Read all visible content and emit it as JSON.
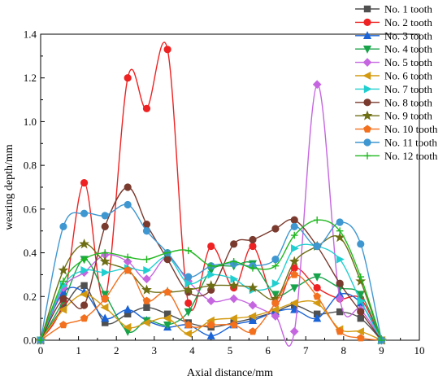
{
  "chart_data": {
    "type": "line",
    "xlabel": "Axial distance/mm",
    "ylabel": "wearing depth/mm",
    "xlim": [
      0,
      10
    ],
    "ylim": [
      0,
      1.4
    ],
    "x_ticks": [
      "0",
      "1",
      "2",
      "3",
      "4",
      "5",
      "6",
      "7",
      "8",
      "9",
      "10"
    ],
    "y_ticks": [
      "0.0",
      "0.2",
      "0.4",
      "0.6",
      "0.8",
      "1.0",
      "1.2",
      "1.4"
    ],
    "grid": false,
    "legend_position": "top-right",
    "series": [
      {
        "name": "No. 1 tooth",
        "color": "#505050",
        "marker": "square",
        "points": [
          [
            0,
            0
          ],
          [
            0.6,
            0.15
          ],
          [
            1.15,
            0.25
          ],
          [
            1.7,
            0.08
          ],
          [
            2.3,
            0.12
          ],
          [
            2.8,
            0.15
          ],
          [
            3.35,
            0.12
          ],
          [
            3.9,
            0.08
          ],
          [
            4.5,
            0.06
          ],
          [
            5.1,
            0.08
          ],
          [
            5.6,
            0.1
          ],
          [
            6.2,
            0.13
          ],
          [
            6.7,
            0.16
          ],
          [
            7.3,
            0.12
          ],
          [
            7.9,
            0.13
          ],
          [
            8.45,
            0.1
          ],
          [
            9.0,
            0
          ]
        ]
      },
      {
        "name": "No. 2 tooth",
        "color": "#ee2222",
        "marker": "circle",
        "points": [
          [
            0,
            0
          ],
          [
            0.6,
            0.18
          ],
          [
            1.15,
            0.72
          ],
          [
            1.7,
            0.19
          ],
          [
            2.3,
            1.2
          ],
          [
            2.8,
            1.06
          ],
          [
            3.35,
            1.33
          ],
          [
            3.9,
            0.17
          ],
          [
            4.5,
            0.43
          ],
          [
            5.1,
            0.24
          ],
          [
            5.6,
            0.43
          ],
          [
            6.2,
            0.17
          ],
          [
            6.7,
            0.33
          ],
          [
            7.3,
            0.24
          ],
          [
            7.9,
            0.19
          ],
          [
            8.45,
            0.19
          ],
          [
            9.0,
            0
          ]
        ]
      },
      {
        "name": "No. 3 tooth",
        "color": "#1a63d6",
        "marker": "triangle-up",
        "points": [
          [
            0,
            0
          ],
          [
            0.6,
            0.22
          ],
          [
            1.15,
            0.22
          ],
          [
            1.7,
            0.1
          ],
          [
            2.3,
            0.14
          ],
          [
            2.8,
            0.09
          ],
          [
            3.35,
            0.06
          ],
          [
            3.9,
            0.07
          ],
          [
            4.5,
            0.02
          ],
          [
            5.1,
            0.07
          ],
          [
            5.6,
            0.09
          ],
          [
            6.2,
            0.13
          ],
          [
            6.7,
            0.14
          ],
          [
            7.3,
            0.1
          ],
          [
            7.9,
            0.21
          ],
          [
            8.45,
            0.17
          ],
          [
            9.0,
            0
          ]
        ]
      },
      {
        "name": "No. 4 tooth",
        "color": "#18a34a",
        "marker": "triangle-down",
        "points": [
          [
            0,
            0
          ],
          [
            0.6,
            0.18
          ],
          [
            1.15,
            0.37
          ],
          [
            1.7,
            0.21
          ],
          [
            2.3,
            0.04
          ],
          [
            2.8,
            0.09
          ],
          [
            3.35,
            0.07
          ],
          [
            3.9,
            0.13
          ],
          [
            4.5,
            0.32
          ],
          [
            5.1,
            0.34
          ],
          [
            5.6,
            0.35
          ],
          [
            6.2,
            0.21
          ],
          [
            6.7,
            0.24
          ],
          [
            7.3,
            0.29
          ],
          [
            7.9,
            0.24
          ],
          [
            8.45,
            0.21
          ],
          [
            9.0,
            0
          ]
        ]
      },
      {
        "name": "No. 5 tooth",
        "color": "#c566e0",
        "marker": "diamond",
        "points": [
          [
            0,
            0
          ],
          [
            0.6,
            0.24
          ],
          [
            1.15,
            0.31
          ],
          [
            1.7,
            0.39
          ],
          [
            2.3,
            0.36
          ],
          [
            2.8,
            0.28
          ],
          [
            3.35,
            0.38
          ],
          [
            3.9,
            0.27
          ],
          [
            4.5,
            0.18
          ],
          [
            5.1,
            0.19
          ],
          [
            5.6,
            0.16
          ],
          [
            6.2,
            0.11
          ],
          [
            6.7,
            0.04
          ],
          [
            7.3,
            1.17
          ],
          [
            7.9,
            0.19
          ],
          [
            8.45,
            0.14
          ],
          [
            9.0,
            0
          ]
        ]
      },
      {
        "name": "No. 6 tooth",
        "color": "#d39a11",
        "marker": "triangle-left",
        "points": [
          [
            0,
            0
          ],
          [
            0.6,
            0.14
          ],
          [
            1.15,
            0.21
          ],
          [
            1.7,
            0.15
          ],
          [
            2.3,
            0.06
          ],
          [
            2.8,
            0.08
          ],
          [
            3.35,
            0.1
          ],
          [
            3.9,
            0.03
          ],
          [
            4.5,
            0.09
          ],
          [
            5.1,
            0.1
          ],
          [
            5.6,
            0.11
          ],
          [
            6.2,
            0.14
          ],
          [
            6.7,
            0.17
          ],
          [
            7.3,
            0.17
          ],
          [
            7.9,
            0.05
          ],
          [
            8.45,
            0.04
          ],
          [
            9.0,
            0
          ]
        ]
      },
      {
        "name": "No. 7 tooth",
        "color": "#22cfd0",
        "marker": "triangle-right",
        "points": [
          [
            0,
            0
          ],
          [
            0.6,
            0.25
          ],
          [
            1.15,
            0.32
          ],
          [
            1.7,
            0.31
          ],
          [
            2.3,
            0.33
          ],
          [
            2.8,
            0.32
          ],
          [
            3.35,
            0.38
          ],
          [
            3.9,
            0.26
          ],
          [
            4.5,
            0.3
          ],
          [
            5.1,
            0.28
          ],
          [
            5.6,
            0.23
          ],
          [
            6.2,
            0.26
          ],
          [
            6.7,
            0.42
          ],
          [
            7.3,
            0.43
          ],
          [
            7.9,
            0.37
          ],
          [
            8.45,
            0.18
          ],
          [
            9.0,
            0
          ]
        ]
      },
      {
        "name": "No. 8 tooth",
        "color": "#7a3a2e",
        "marker": "circle",
        "points": [
          [
            0,
            0
          ],
          [
            0.6,
            0.19
          ],
          [
            1.15,
            0.16
          ],
          [
            1.7,
            0.52
          ],
          [
            2.3,
            0.7
          ],
          [
            2.8,
            0.53
          ],
          [
            3.35,
            0.37
          ],
          [
            3.9,
            0.22
          ],
          [
            4.5,
            0.23
          ],
          [
            5.1,
            0.44
          ],
          [
            5.6,
            0.46
          ],
          [
            6.2,
            0.51
          ],
          [
            6.7,
            0.55
          ],
          [
            7.3,
            0.43
          ],
          [
            7.9,
            0.26
          ],
          [
            8.45,
            0.13
          ],
          [
            9.0,
            0
          ]
        ]
      },
      {
        "name": "No. 9 tooth",
        "color": "#6e6e14",
        "marker": "star",
        "points": [
          [
            0,
            0
          ],
          [
            0.6,
            0.32
          ],
          [
            1.15,
            0.44
          ],
          [
            1.7,
            0.36
          ],
          [
            2.3,
            0.32
          ],
          [
            2.8,
            0.23
          ],
          [
            3.35,
            0.22
          ],
          [
            3.9,
            0.23
          ],
          [
            4.5,
            0.25
          ],
          [
            5.1,
            0.25
          ],
          [
            5.6,
            0.24
          ],
          [
            6.2,
            0.19
          ],
          [
            6.7,
            0.36
          ],
          [
            7.3,
            0.43
          ],
          [
            7.9,
            0.47
          ],
          [
            8.45,
            0.27
          ],
          [
            9.0,
            0
          ]
        ]
      },
      {
        "name": "No. 10 tooth",
        "color": "#f2701e",
        "marker": "pentagon",
        "points": [
          [
            0,
            0
          ],
          [
            0.6,
            0.07
          ],
          [
            1.15,
            0.1
          ],
          [
            1.7,
            0.19
          ],
          [
            2.3,
            0.32
          ],
          [
            2.8,
            0.18
          ],
          [
            3.35,
            0.22
          ],
          [
            3.9,
            0.07
          ],
          [
            4.5,
            0.07
          ],
          [
            5.1,
            0.07
          ],
          [
            5.6,
            0.04
          ],
          [
            6.2,
            0.17
          ],
          [
            6.7,
            0.3
          ],
          [
            7.3,
            0.2
          ],
          [
            7.9,
            0.04
          ],
          [
            8.45,
            0.01
          ],
          [
            9.0,
            0
          ]
        ]
      },
      {
        "name": "No. 11 tooth",
        "color": "#3f97d1",
        "marker": "circle",
        "points": [
          [
            0,
            0
          ],
          [
            0.6,
            0.52
          ],
          [
            1.15,
            0.58
          ],
          [
            1.7,
            0.57
          ],
          [
            2.3,
            0.62
          ],
          [
            2.8,
            0.5
          ],
          [
            3.35,
            0.4
          ],
          [
            3.9,
            0.29
          ],
          [
            4.5,
            0.34
          ],
          [
            5.1,
            0.35
          ],
          [
            5.6,
            0.34
          ],
          [
            6.2,
            0.37
          ],
          [
            6.7,
            0.52
          ],
          [
            7.3,
            0.43
          ],
          [
            7.9,
            0.54
          ],
          [
            8.45,
            0.44
          ],
          [
            9.0,
            0
          ]
        ]
      },
      {
        "name": "No. 12 tooth",
        "color": "#20b820",
        "marker": "plus",
        "points": [
          [
            0,
            0
          ],
          [
            0.6,
            0.27
          ],
          [
            1.15,
            0.37
          ],
          [
            1.7,
            0.4
          ],
          [
            2.3,
            0.38
          ],
          [
            2.8,
            0.37
          ],
          [
            3.35,
            0.4
          ],
          [
            3.9,
            0.41
          ],
          [
            4.5,
            0.34
          ],
          [
            5.1,
            0.36
          ],
          [
            5.6,
            0.33
          ],
          [
            6.2,
            0.34
          ],
          [
            6.7,
            0.48
          ],
          [
            7.3,
            0.55
          ],
          [
            7.9,
            0.5
          ],
          [
            8.45,
            0.29
          ],
          [
            9.0,
            0
          ]
        ]
      }
    ]
  }
}
